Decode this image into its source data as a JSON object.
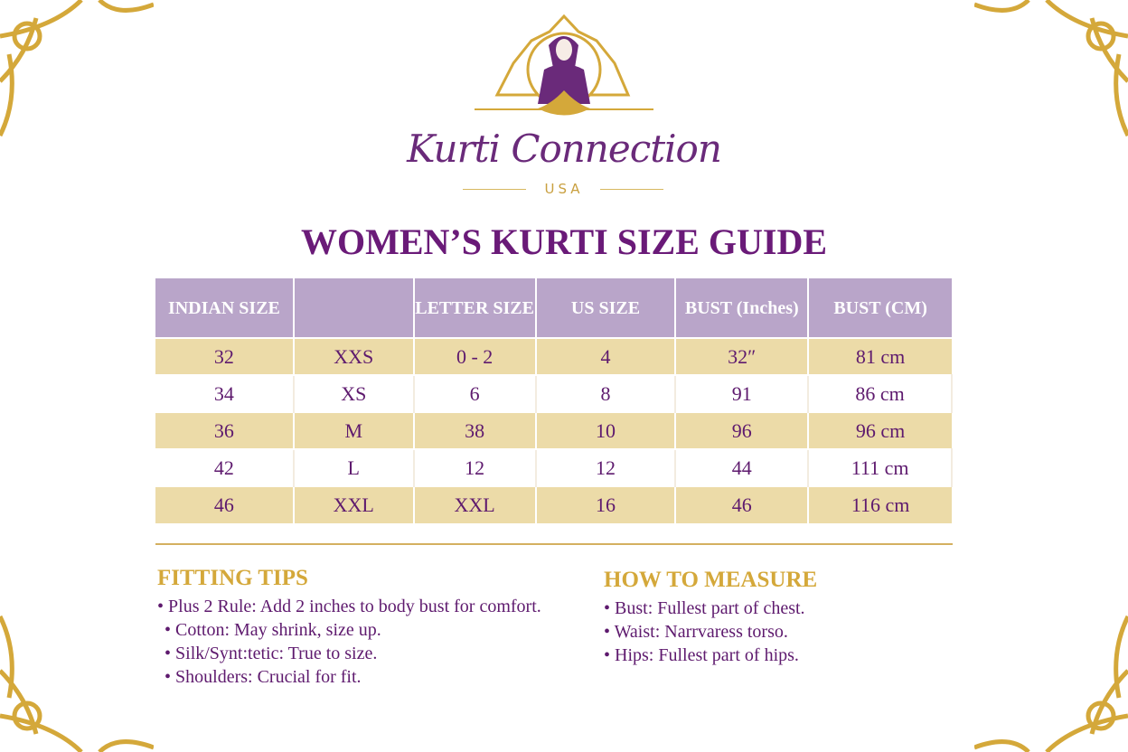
{
  "brand": {
    "name": "Kurti Connection",
    "sub": "USA"
  },
  "title": "WOMEN’S KURTI SIZE GUIDE",
  "table": {
    "headers": [
      "INDIAN SIZE",
      "",
      "LETTER SIZE",
      "US SIZE",
      "BUST (Inches)",
      "BUST (CM)"
    ],
    "rows": [
      [
        "32",
        "XXS",
        "0 - 2",
        "4",
        "32″",
        "81 cm"
      ],
      [
        "34",
        "XS",
        "6",
        "8",
        "91",
        "86 cm"
      ],
      [
        "36",
        "M",
        "38",
        "10",
        "96",
        "96 cm"
      ],
      [
        "42",
        "L",
        "12",
        "12",
        "44",
        "111 cm"
      ],
      [
        "46",
        "XXL",
        "XXL",
        "16",
        "46",
        "116 cm"
      ]
    ]
  },
  "fitting_tips": {
    "title": "FITTING TIPS",
    "items": [
      "Plus 2 Rule: Add 2 inches to body bust for comfort.",
      "Cotton: May shrink, size up.",
      "Silk/Synt:tetic: True to size.",
      "Shoulders: Crucial for fit."
    ]
  },
  "how_to_measure": {
    "title": "HOW TO MEASURE",
    "items": [
      "Bust: Fullest part of chest.",
      "Waist: Narrvaress torso.",
      "Hips: Fullest part of hips."
    ]
  },
  "colors": {
    "purple": "#5e1a6e",
    "gold": "#d4a83a",
    "header_bg": "#b9a5c9",
    "row_gold": "#ecdba8"
  }
}
